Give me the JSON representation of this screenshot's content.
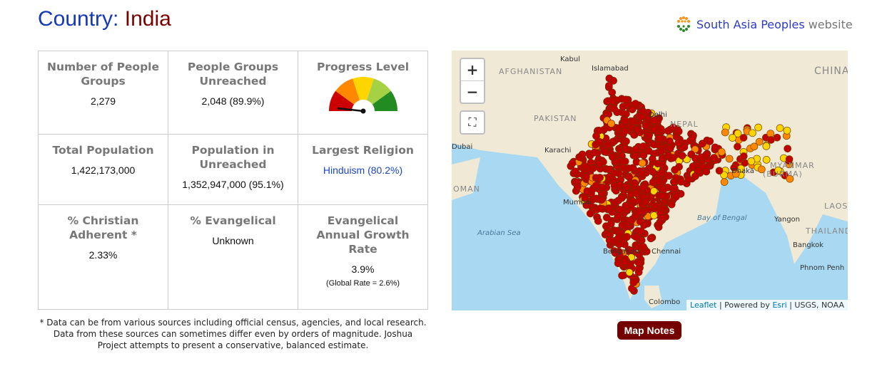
{
  "title": {
    "label": "Country:",
    "country": "India"
  },
  "regional_link": {
    "name": "South Asia Peoples",
    "suffix": "website",
    "icon": "south-asia-peoples-logo"
  },
  "stats": [
    {
      "label": "Number of People Groups",
      "value": "2,279"
    },
    {
      "label": "People Groups Unreached",
      "value": "2,048 (89.9%)"
    },
    {
      "label": "Progress Level",
      "gauge_level": 1,
      "gauge_max": 5,
      "gauge_colors": [
        "#cc0000",
        "#ff8800",
        "#ffd500",
        "#a5d245",
        "#228b22"
      ]
    },
    {
      "label": "Total Population",
      "value": "1,422,173,000"
    },
    {
      "label": "Population in Unreached",
      "value": "1,352,947,000 (95.1%)"
    },
    {
      "label": "Largest Religion",
      "value": "Hinduism (80.2%)"
    },
    {
      "label": "% Christian Adherent *",
      "value": "2.33%"
    },
    {
      "label": "% Evangelical",
      "value": "Unknown"
    },
    {
      "label": "Evangelical Annual Growth Rate",
      "value": "3.9%",
      "note": "(Global Rate = 2.6%)"
    }
  ],
  "footnote": "* Data can be from various sources including official census, agencies, and local research. Data from these sources can sometimes differ even by orders of magnitude. Joshua Project attempts to present a conservative, balanced estimate.",
  "map": {
    "zoom_in": "+",
    "zoom_out": "−",
    "labels": [
      "Kabul",
      "AFGHANISTAN",
      "Islamabad",
      "CHINA",
      "PAKISTAN",
      "Delhi",
      "NEPAL",
      "Dubai",
      "Karachi",
      "Dhaka",
      "MYANMAR",
      "(BURMA)",
      "OMAN",
      "Mumbai",
      "LAOS",
      "Bay of Bengal",
      "Yangon",
      "Arabian Sea",
      "THAILAND",
      "Bengaluru",
      "Chennai",
      "Bangkok",
      "Phnom Penh",
      "Colombo"
    ],
    "attribution": {
      "leaflet": "Leaflet",
      "powered": "| Powered by",
      "esri": "Esri",
      "sources": "| USGS, NOAA"
    },
    "marker_colors": {
      "unreached": "#c00000",
      "minimally": "#ff8800",
      "superficial": "#ffd500"
    }
  },
  "map_notes_button": "Map Notes"
}
